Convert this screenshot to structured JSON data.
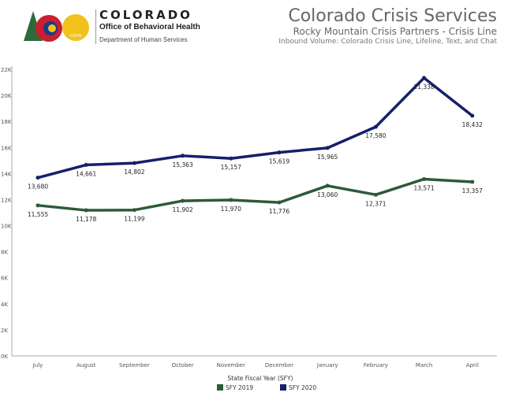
{
  "header": {
    "logo_line1": "COLORADO",
    "logo_line2": "Office of Behavioral Health",
    "logo_line3": "Department of Human Services",
    "logo_badge": "CDHS",
    "title": "Colorado Crisis Services",
    "subtitle": "Rocky Mountain Crisis Partners - Crisis Line",
    "subtitle2": "Inbound Volume: Colorado Crisis Line, Lifeline, Text, and Chat"
  },
  "chart_data": {
    "type": "line",
    "categories": [
      "July",
      "August",
      "September",
      "October",
      "November",
      "December",
      "January",
      "February",
      "March",
      "April"
    ],
    "series": [
      {
        "name": "SFY 2019",
        "color": "#2d5a3a",
        "values": [
          11555,
          11178,
          11199,
          11902,
          11970,
          11776,
          13060,
          12371,
          13571,
          13357
        ]
      },
      {
        "name": "SFY 2020",
        "color": "#14206a",
        "values": [
          13680,
          14661,
          14802,
          15363,
          15157,
          15619,
          15965,
          17580,
          21338,
          18432
        ]
      }
    ],
    "yticks": [
      "0K",
      "2K",
      "4K",
      "6K",
      "8K",
      "10K",
      "12K",
      "14K",
      "16K",
      "18K",
      "20K",
      "22K"
    ],
    "ylim": [
      0,
      22000
    ],
    "legend_title": "State Fiscal Year (SFY)",
    "legend_position": "bottom",
    "grid": false
  }
}
